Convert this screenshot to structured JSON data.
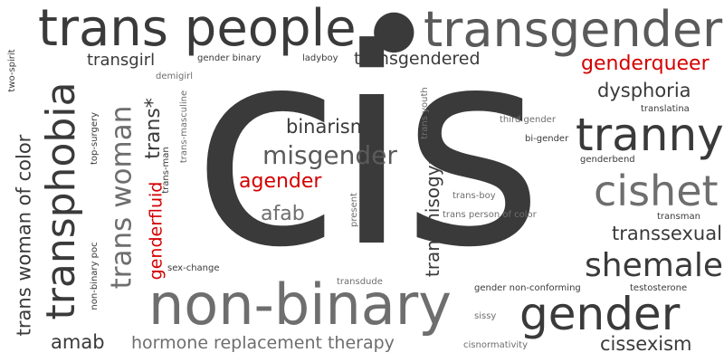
{
  "colors": {
    "dark": "#3a3a3a",
    "mid": "#5a5a5a",
    "light": "#6e6e6e",
    "red": "#d40000"
  },
  "words": {
    "cis": "cis",
    "trans_people": "trans people",
    "dot": "●",
    "transgender": "transgender",
    "transgirl": "transgirl",
    "gender_binary": "gender binary",
    "ladyboy": "ladyboy",
    "transgendered": "transgendered",
    "genderqueer": "genderqueer",
    "demigirl": "demigirl",
    "two_spirit": "two-spirit",
    "dysphoria": "dysphoria",
    "translatina": "translatina",
    "binarism": "binarism",
    "third_gender": "third gender",
    "bi_gender": "bi-gender",
    "tranny": "tranny",
    "misgender": "misgender",
    "genderbend": "genderbend",
    "agender": "agender",
    "cishet": "cishet",
    "afab": "afab",
    "trans_boy": "trans-boy",
    "trans_person_of_color": "trans person of color",
    "transman": "transman",
    "transsexual": "transsexual",
    "shemale": "shemale",
    "sex_change": "sex-change",
    "transdude": "transdude",
    "non_binary": "non-binary",
    "gender_non_conforming": "gender non-conforming",
    "testosterone": "testosterone",
    "gender": "gender",
    "sissy": "sissy",
    "amab": "amab",
    "hrt": "hormone replacement therapy",
    "cissexism": "cissexism",
    "cisnormativity": "cisnormativity",
    "trans_woman_of_color": "trans woman of color",
    "transphobia": "transphobia",
    "non_binary_poc": "non-binary poc",
    "top_surgery": "top-surgery",
    "trans_woman": "trans woman",
    "trans_star": "trans*",
    "genderfluid": "genderfluid",
    "trans_man": "trans-man",
    "trans_masculine": "trans-masculine",
    "present": "present",
    "trans_youth": "trans youth",
    "transmisogyny": "transmisogyny"
  }
}
